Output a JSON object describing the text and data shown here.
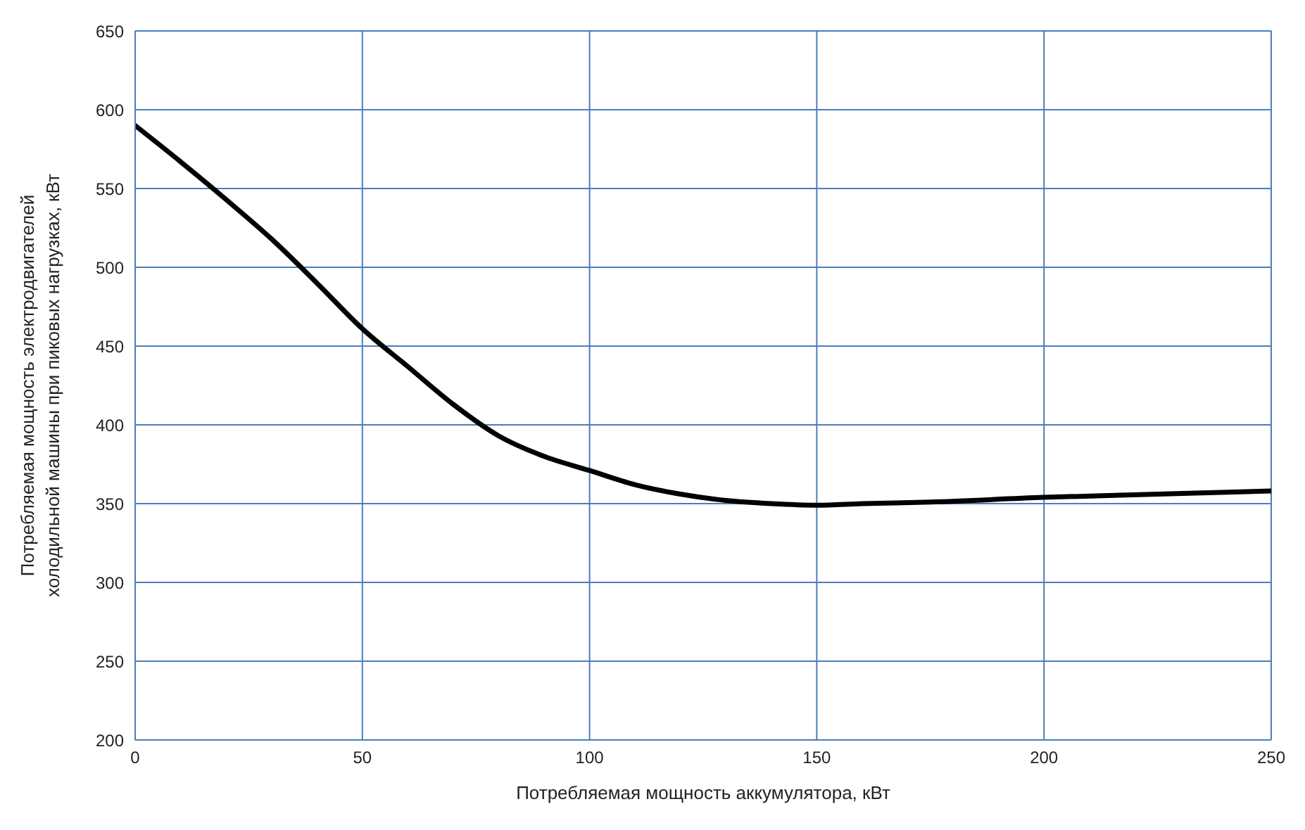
{
  "chart_data": {
    "type": "line",
    "xlabel": "Потребляемая мощность аккумулятора, кВт",
    "ylabel": "Потребляемая мощность электродвигателей холодильной машины при пиковых нагрузках, кВт",
    "x": [
      0,
      10,
      20,
      30,
      40,
      50,
      60,
      70,
      80,
      90,
      100,
      110,
      120,
      130,
      140,
      150,
      160,
      175,
      200,
      225,
      250
    ],
    "series": [
      {
        "color": "#000000",
        "values": [
          590,
          567,
          543,
          518,
          490,
          461,
          437,
          413,
          393,
          380,
          371,
          362,
          356,
          352,
          350,
          349,
          350,
          351,
          354,
          356,
          358
        ]
      }
    ],
    "xlim": [
      0,
      250
    ],
    "xticks": [
      0,
      50,
      100,
      150,
      200,
      250
    ],
    "ylim": [
      200,
      650
    ],
    "yticks": [
      200,
      250,
      300,
      350,
      400,
      450,
      500,
      550,
      600,
      650
    ],
    "grid": true,
    "legend": false,
    "marker": "none",
    "line_style": "solid"
  }
}
